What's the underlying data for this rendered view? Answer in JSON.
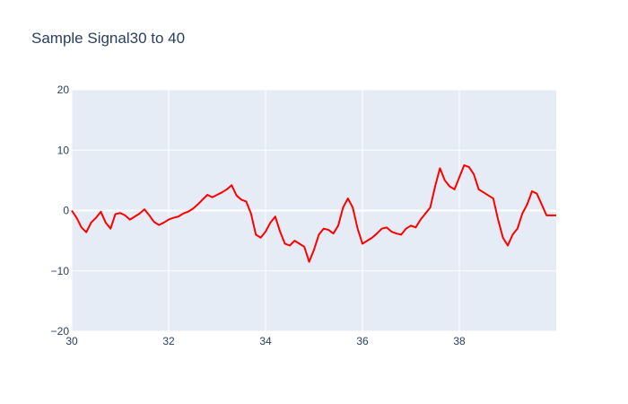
{
  "chart_data": {
    "type": "line",
    "title": "Sample Signal30 to 40",
    "xlabel": "",
    "ylabel": "",
    "xlim": [
      30,
      40
    ],
    "ylim": [
      -20,
      20
    ],
    "x_ticks": [
      30,
      32,
      34,
      36,
      38
    ],
    "y_ticks": [
      -20,
      -10,
      0,
      10,
      20
    ],
    "grid": true,
    "legend": "none",
    "colors": {
      "line": "#ff0000",
      "plot_bg": "#e5ecf6",
      "grid": "#ffffff"
    },
    "series": [
      {
        "x": [
          30.0,
          30.1,
          30.2,
          30.3,
          30.4,
          30.5,
          30.6,
          30.7,
          30.8,
          30.9,
          31.0,
          31.1,
          31.2,
          31.3,
          31.4,
          31.5,
          31.6,
          31.7,
          31.8,
          31.9,
          32.0,
          32.1,
          32.2,
          32.3,
          32.4,
          32.5,
          32.6,
          32.7,
          32.8,
          32.9,
          33.0,
          33.1,
          33.2,
          33.3,
          33.4,
          33.5,
          33.6,
          33.7,
          33.8,
          33.9,
          34.0,
          34.1,
          34.2,
          34.3,
          34.4,
          34.5,
          34.6,
          34.7,
          34.8,
          34.9,
          35.0,
          35.1,
          35.2,
          35.3,
          35.4,
          35.5,
          35.6,
          35.7,
          35.8,
          35.9,
          36.0,
          36.1,
          36.2,
          36.3,
          36.4,
          36.5,
          36.6,
          36.7,
          36.8,
          36.9,
          37.0,
          37.1,
          37.2,
          37.3,
          37.4,
          37.5,
          37.6,
          37.7,
          37.8,
          37.9,
          38.0,
          38.1,
          38.2,
          38.3,
          38.4,
          38.5,
          38.6,
          38.7,
          38.8,
          38.9,
          39.0,
          39.1,
          39.2,
          39.3,
          39.4,
          39.5,
          39.6,
          39.7,
          39.8,
          39.9,
          40.0
        ],
        "y": [
          0.0,
          -1.2,
          -2.8,
          -3.6,
          -2.0,
          -1.2,
          -0.2,
          -2.0,
          -3.0,
          -0.6,
          -0.4,
          -0.8,
          -1.5,
          -1.0,
          -0.5,
          0.2,
          -0.8,
          -1.9,
          -2.4,
          -2.0,
          -1.5,
          -1.2,
          -1.0,
          -0.5,
          -0.2,
          0.3,
          1.0,
          1.8,
          2.6,
          2.2,
          2.6,
          3.0,
          3.5,
          4.2,
          2.5,
          1.8,
          1.5,
          -0.5,
          -4.0,
          -4.5,
          -3.5,
          -2.0,
          -1.0,
          -3.5,
          -5.5,
          -5.8,
          -5.0,
          -5.5,
          -6.0,
          -8.5,
          -6.5,
          -4.0,
          -3.0,
          -3.2,
          -3.8,
          -2.5,
          0.5,
          2.0,
          0.5,
          -3.0,
          -5.5,
          -5.0,
          -4.5,
          -3.8,
          -3.0,
          -2.8,
          -3.5,
          -3.8,
          -4.0,
          -3.0,
          -2.5,
          -2.8,
          -1.5,
          -0.5,
          0.5,
          4.0,
          7.0,
          5.0,
          4.0,
          3.5,
          5.5,
          7.5,
          7.2,
          6.0,
          3.5,
          3.0,
          2.5,
          2.0,
          -1.5,
          -4.5,
          -5.8,
          -4.0,
          -3.0,
          -0.5,
          1.0,
          3.2,
          2.8,
          1.0,
          -0.8,
          -0.8,
          -0.8
        ]
      }
    ]
  }
}
